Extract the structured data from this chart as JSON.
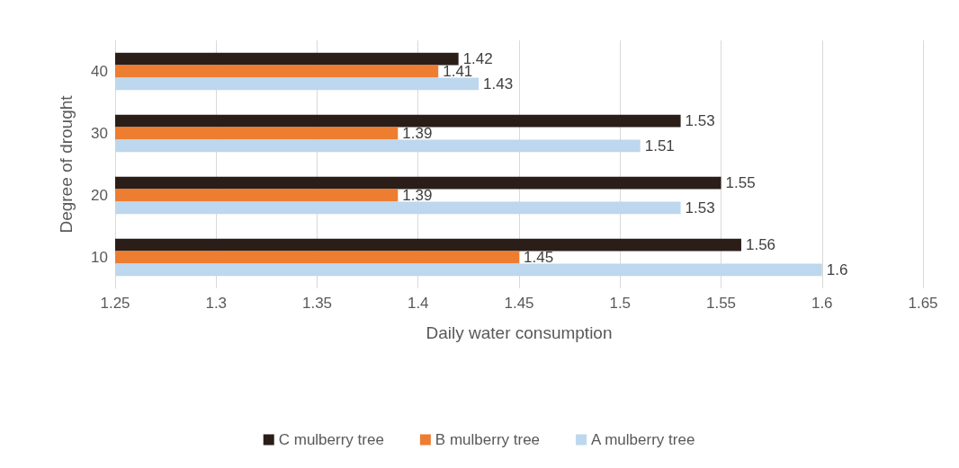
{
  "chart_data": {
    "type": "bar",
    "orientation": "horizontal",
    "xlabel": "Daily water consumption",
    "ylabel": "Degree of drought",
    "categories": [
      "40",
      "30",
      "20",
      "10"
    ],
    "series": [
      {
        "name": "C mulberry tree",
        "color": "#2b1d18",
        "values": [
          1.42,
          1.53,
          1.55,
          1.56
        ]
      },
      {
        "name": "B mulberry tree",
        "color": "#ed7d31",
        "values": [
          1.41,
          1.39,
          1.39,
          1.45
        ]
      },
      {
        "name": "A mulberry tree",
        "color": "#bdd7ee",
        "values": [
          1.43,
          1.51,
          1.53,
          1.6
        ]
      }
    ],
    "xlim": [
      1.25,
      1.65
    ],
    "xticks": [
      1.25,
      1.3,
      1.35,
      1.4,
      1.45,
      1.5,
      1.55,
      1.6,
      1.65
    ],
    "grid": "x",
    "legend": "bottom",
    "data_labels": true
  }
}
